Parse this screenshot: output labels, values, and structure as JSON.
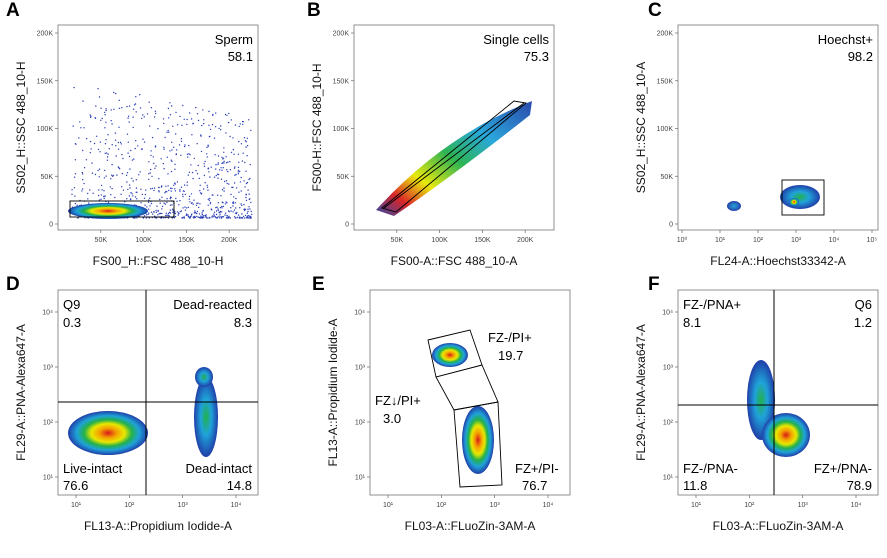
{
  "chart_data": [
    {
      "id": "A",
      "type": "scatter",
      "xlabel": "FS00_H::FSC 488_10-H",
      "ylabel": "SS02_H::SSC 488_10-H",
      "scale": "linear",
      "xticks": [
        "50K",
        "100K",
        "150K",
        "200K"
      ],
      "yticks": [
        "0",
        "50K",
        "100K",
        "150K",
        "200K"
      ],
      "xlim": [
        0,
        215000
      ],
      "ylim": [
        0,
        215000
      ],
      "gates": [
        {
          "name": "Sperm",
          "value": "58.1",
          "x": [
            20000,
            128000
          ],
          "y": [
            3000,
            25000
          ]
        }
      ]
    },
    {
      "id": "B",
      "type": "heatmap",
      "xlabel": "FS00-A::FSC 488_10-A",
      "ylabel": "FS00-H::FSC 488_10-H",
      "scale": "linear",
      "xticks": [
        "50K",
        "100K",
        "150K",
        "200K"
      ],
      "yticks": [
        "0",
        "50K",
        "100K",
        "150K",
        "200K"
      ],
      "xlim": [
        0,
        215000
      ],
      "ylim": [
        0,
        215000
      ],
      "gates": [
        {
          "name": "Single cells",
          "value": "75.3"
        }
      ]
    },
    {
      "id": "C",
      "type": "heatmap",
      "xlabel": "FL24-A::Hoechst33342-A",
      "ylabel": "SS02_H::SSC 488_10-A",
      "scale": "log-x",
      "xticks": [
        "10⁰",
        "10¹",
        "10²",
        "10³",
        "10⁴",
        "10⁵"
      ],
      "yticks": [
        "0",
        "50K",
        "100K",
        "150K",
        "200K"
      ],
      "gates": [
        {
          "name": "Hoechst+",
          "value": "98.2"
        }
      ]
    },
    {
      "id": "D",
      "type": "heatmap",
      "xlabel": "FL13-A::Propidium Iodide-A",
      "ylabel": "FL29-A::PNA-Alexa647-A",
      "scale": "log",
      "xticks": [
        "10¹",
        "10²",
        "10³",
        "10⁴"
      ],
      "yticks": [
        "10¹",
        "10²",
        "10³",
        "10⁴"
      ],
      "quadrants": [
        {
          "name": "Q9",
          "value": "0.3"
        },
        {
          "name": "Dead-reacted",
          "value": "8.3"
        },
        {
          "name": "Live-intact",
          "value": "76.6"
        },
        {
          "name": "Dead-intact",
          "value": "14.8"
        }
      ]
    },
    {
      "id": "E",
      "type": "heatmap",
      "xlabel": "FL03-A::FLuoZin-3AM-A",
      "ylabel": "FL13-A::Propidium Iodide-A",
      "scale": "log",
      "xticks": [
        "10¹",
        "10²",
        "10³",
        "10⁴"
      ],
      "yticks": [
        "10¹",
        "10²",
        "10³",
        "10⁴"
      ],
      "gates": [
        {
          "name": "FZ-/PI+",
          "value": "19.7"
        },
        {
          "name": "FZ↓/PI+",
          "value": "3.0"
        },
        {
          "name": "FZ+/PI-",
          "value": "76.7"
        }
      ]
    },
    {
      "id": "F",
      "type": "heatmap",
      "xlabel": "FL03-A::FLuoZin-3AM-A",
      "ylabel": "FL29-A::PNA-Alexa647-A",
      "scale": "log",
      "xticks": [
        "10¹",
        "10²",
        "10³",
        "10⁴"
      ],
      "yticks": [
        "10¹",
        "10²",
        "10³",
        "10⁴"
      ],
      "quadrants": [
        {
          "name": "FZ-/PNA+",
          "value": "8.1"
        },
        {
          "name": "Q6",
          "value": "1.2"
        },
        {
          "name": "FZ-/PNA-",
          "value": "11.8"
        },
        {
          "name": "FZ+/PNA-",
          "value": "78.9"
        }
      ]
    }
  ]
}
